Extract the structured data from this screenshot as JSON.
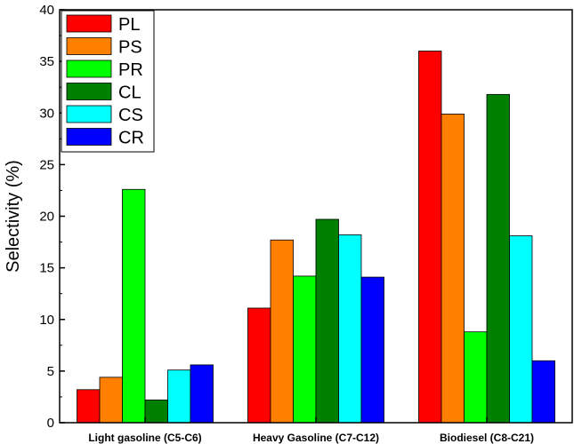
{
  "chart_data": {
    "type": "bar",
    "title": "",
    "xlabel": "",
    "ylabel": "Selectivity (%)",
    "ylim": [
      0,
      40
    ],
    "yticks": [
      0,
      5,
      10,
      15,
      20,
      25,
      30,
      35,
      40
    ],
    "categories": [
      "Light gasoline (C5-C6)",
      "Heavy Gasoline (C7-C12)",
      "Biodiesel (C8-C21)"
    ],
    "grid": false,
    "legend_position": "top-left",
    "series": [
      {
        "name": "PL",
        "color": "#ff0000",
        "values": [
          3.2,
          11.1,
          36.0
        ]
      },
      {
        "name": "PS",
        "color": "#ff8000",
        "values": [
          4.4,
          17.7,
          29.9
        ]
      },
      {
        "name": "PR",
        "color": "#00ff00",
        "values": [
          22.6,
          14.2,
          8.8
        ]
      },
      {
        "name": "CL",
        "color": "#008000",
        "values": [
          2.2,
          19.7,
          31.8
        ]
      },
      {
        "name": "CS",
        "color": "#00ffff",
        "values": [
          5.1,
          18.2,
          18.1
        ]
      },
      {
        "name": "CR",
        "color": "#0000ff",
        "values": [
          5.6,
          14.1,
          6.0
        ]
      }
    ]
  }
}
